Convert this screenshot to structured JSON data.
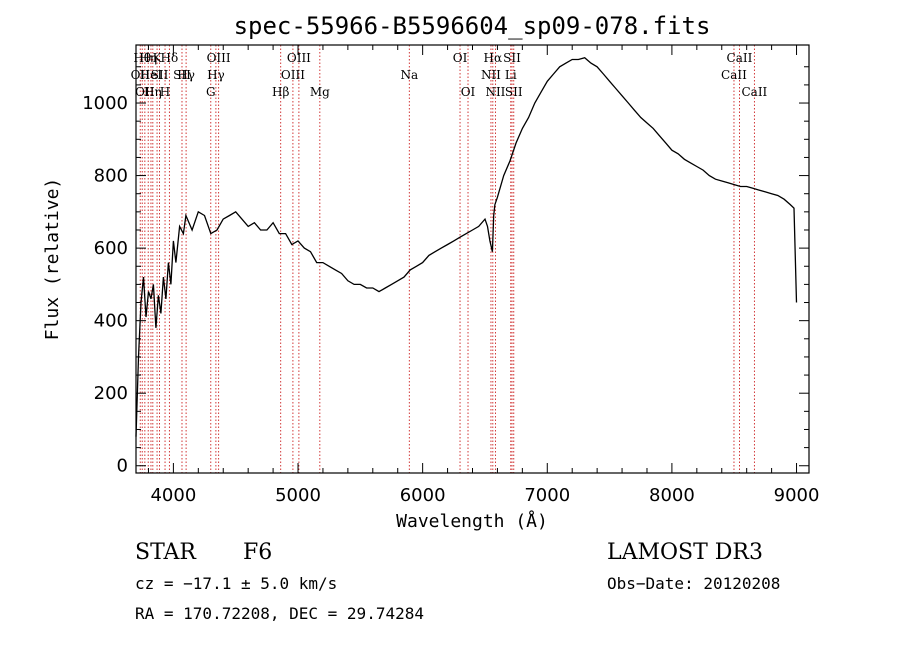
{
  "chart_data": {
    "type": "line",
    "title": "spec-55966-B5596604_sp09-078.fits",
    "xlabel": "Wavelength (Å)",
    "ylabel": "Flux (relative)",
    "xlim": [
      3700,
      9100
    ],
    "ylim": [
      -20,
      1160
    ],
    "xticks": [
      4000,
      5000,
      6000,
      7000,
      8000,
      9000
    ],
    "yticks": [
      0,
      200,
      400,
      600,
      800,
      1000
    ],
    "grid": false,
    "series": [
      {
        "name": "flux",
        "x": [
          3700,
          3720,
          3740,
          3760,
          3780,
          3800,
          3820,
          3840,
          3860,
          3880,
          3900,
          3920,
          3940,
          3960,
          3980,
          4000,
          4020,
          4050,
          4080,
          4100,
          4150,
          4200,
          4250,
          4300,
          4350,
          4400,
          4450,
          4500,
          4550,
          4600,
          4650,
          4700,
          4750,
          4800,
          4850,
          4900,
          4950,
          5000,
          5050,
          5100,
          5150,
          5200,
          5250,
          5300,
          5350,
          5400,
          5450,
          5500,
          5550,
          5600,
          5650,
          5700,
          5750,
          5800,
          5850,
          5900,
          5950,
          6000,
          6050,
          6100,
          6150,
          6200,
          6250,
          6300,
          6350,
          6400,
          6450,
          6500,
          6520,
          6540,
          6560,
          6570,
          6580,
          6600,
          6650,
          6700,
          6750,
          6800,
          6850,
          6900,
          6950,
          7000,
          7050,
          7100,
          7150,
          7200,
          7250,
          7300,
          7350,
          7400,
          7450,
          7500,
          7550,
          7600,
          7650,
          7700,
          7750,
          7800,
          7850,
          7900,
          7950,
          8000,
          8050,
          8100,
          8150,
          8200,
          8250,
          8300,
          8350,
          8400,
          8450,
          8500,
          8550,
          8600,
          8650,
          8700,
          8750,
          8800,
          8850,
          8900,
          8950,
          8980,
          9000
        ],
        "y": [
          80,
          300,
          450,
          520,
          410,
          480,
          460,
          500,
          380,
          470,
          420,
          520,
          460,
          560,
          500,
          620,
          560,
          660,
          640,
          690,
          650,
          700,
          690,
          640,
          650,
          680,
          690,
          700,
          680,
          660,
          670,
          650,
          650,
          670,
          640,
          640,
          610,
          620,
          600,
          590,
          560,
          560,
          550,
          540,
          530,
          510,
          500,
          500,
          490,
          490,
          480,
          490,
          500,
          510,
          520,
          540,
          550,
          560,
          580,
          590,
          600,
          610,
          620,
          630,
          640,
          650,
          660,
          680,
          660,
          620,
          590,
          690,
          720,
          740,
          800,
          840,
          890,
          930,
          960,
          1000,
          1030,
          1060,
          1080,
          1100,
          1110,
          1120,
          1120,
          1125,
          1110,
          1100,
          1080,
          1060,
          1040,
          1020,
          1000,
          980,
          960,
          945,
          930,
          910,
          890,
          870,
          860,
          845,
          835,
          825,
          815,
          800,
          790,
          785,
          780,
          775,
          770,
          770,
          765,
          760,
          755,
          750,
          745,
          735,
          720,
          710,
          450
        ]
      }
    ],
    "line_marks": [
      {
        "x": 3734,
        "label": "OII",
        "row": 2
      },
      {
        "x": 3750,
        "label": "Hθ",
        "row": 1
      },
      {
        "x": 3771,
        "label": "OII",
        "row": 3
      },
      {
        "x": 3798,
        "label": "Hη",
        "row": 1
      },
      {
        "x": 3820,
        "label": "HeI",
        "row": 2
      },
      {
        "x": 3835,
        "label": "Hη",
        "row": 3
      },
      {
        "x": 3869,
        "label": "K",
        "row": 1
      },
      {
        "x": 3889,
        "label": "SII",
        "row": 2
      },
      {
        "x": 3933,
        "label": "H",
        "row": 3
      },
      {
        "x": 3968,
        "label": "Hδ",
        "row": 1
      },
      {
        "x": 4069,
        "label": "SII",
        "row": 2
      },
      {
        "x": 4102,
        "label": "Hγ",
        "row": 2
      },
      {
        "x": 4300,
        "label": "G",
        "row": 3
      },
      {
        "x": 4341,
        "label": "Hγ",
        "row": 2
      },
      {
        "x": 4363,
        "label": "OIII",
        "row": 1
      },
      {
        "x": 4861,
        "label": "Hβ",
        "row": 3
      },
      {
        "x": 4959,
        "label": "OIII",
        "row": 2
      },
      {
        "x": 5007,
        "label": "OIII",
        "row": 1
      },
      {
        "x": 5175,
        "label": "Mg",
        "row": 3
      },
      {
        "x": 5893,
        "label": "Na",
        "row": 2
      },
      {
        "x": 6300,
        "label": "OI",
        "row": 1
      },
      {
        "x": 6364,
        "label": "OI",
        "row": 3
      },
      {
        "x": 6548,
        "label": "NII",
        "row": 2
      },
      {
        "x": 6563,
        "label": "Hα",
        "row": 1
      },
      {
        "x": 6584,
        "label": "NII",
        "row": 3
      },
      {
        "x": 6707,
        "label": "Li",
        "row": 2
      },
      {
        "x": 6717,
        "label": "SII",
        "row": 1
      },
      {
        "x": 6731,
        "label": "SII",
        "row": 3
      },
      {
        "x": 8498,
        "label": "CaII",
        "row": 2
      },
      {
        "x": 8542,
        "label": "CaII",
        "row": 1
      },
      {
        "x": 8662,
        "label": "CaII",
        "row": 3
      }
    ]
  },
  "info": {
    "object_class": "STAR",
    "subclass": "F6",
    "survey": "LAMOST DR3",
    "cz": "cz = −17.1 ± 5.0 km/s",
    "obs_date": "Obs−Date: 20120208",
    "coords": "RA = 170.72208, DEC =  29.74284"
  },
  "colors": {
    "axis": "#000000",
    "spectrum": "#000000",
    "line_marker": "#cc2222",
    "background": "#ffffff"
  }
}
